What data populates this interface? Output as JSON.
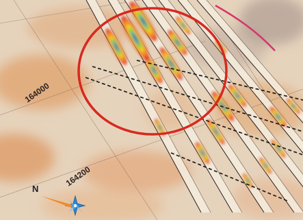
{
  "map": {
    "grid_labels": [
      "164000",
      "164200"
    ],
    "north_label": "N",
    "annotation": {
      "shape": "circle",
      "color": "#d8281f"
    },
    "overlay_line_color": "#d6356b",
    "colors": {
      "background": "#e6d3bc",
      "terrain_warm": "#d9833d",
      "section_paper": "#f4ebdc",
      "section_edge": "#2a2222",
      "anomaly_ramp": [
        "#e03a1c",
        "#f79a1c",
        "#f1df2c",
        "#6ccb3c",
        "#1fa4c8",
        "#1546a6"
      ],
      "compass": [
        "#2b86d4",
        "#f08a2a"
      ]
    }
  }
}
